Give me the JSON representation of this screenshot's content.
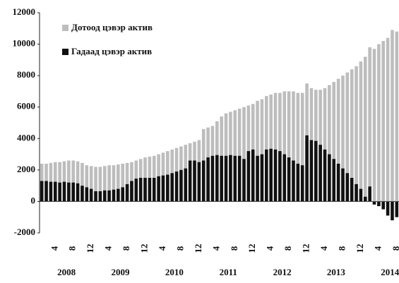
{
  "chart_data": {
    "type": "bar",
    "series": [
      {
        "name": "Дотоод цэвэр актив",
        "color": "#bdbdbd",
        "values": [
          2400,
          2400,
          2450,
          2500,
          2500,
          2550,
          2600,
          2600,
          2550,
          2450,
          2300,
          2250,
          2200,
          2200,
          2250,
          2300,
          2300,
          2350,
          2400,
          2450,
          2500,
          2600,
          2700,
          2800,
          2850,
          2900,
          3000,
          3100,
          3200,
          3300,
          3400,
          3500,
          3600,
          3700,
          3800,
          3900,
          4600,
          4700,
          4800,
          5100,
          5400,
          5600,
          5700,
          5800,
          5900,
          6000,
          6100,
          6200,
          6400,
          6500,
          6700,
          6800,
          6900,
          6900,
          7000,
          7000,
          7000,
          6900,
          6900,
          7500,
          7200,
          7100,
          7100,
          7200,
          7400,
          7600,
          7800,
          8000,
          8200,
          8400,
          8600,
          8900,
          9200,
          9800,
          9700,
          10000,
          10200,
          10400,
          10900,
          10800
        ]
      },
      {
        "name": "Гадаад цэвэр актив",
        "color": "#111111",
        "values": [
          1300,
          1300,
          1250,
          1250,
          1200,
          1250,
          1200,
          1200,
          1150,
          1000,
          900,
          800,
          650,
          650,
          700,
          700,
          750,
          800,
          900,
          1100,
          1300,
          1450,
          1500,
          1500,
          1500,
          1500,
          1600,
          1650,
          1700,
          1800,
          1900,
          2000,
          2100,
          2600,
          2600,
          2500,
          2600,
          2800,
          2900,
          2950,
          2900,
          2900,
          2950,
          2900,
          2900,
          2700,
          3200,
          3300,
          2900,
          3000,
          3300,
          3350,
          3300,
          3200,
          3000,
          2800,
          2600,
          2400,
          2300,
          4200,
          3900,
          3850,
          3600,
          3300,
          3000,
          2700,
          2400,
          2100,
          1800,
          1500,
          1100,
          800,
          300,
          950,
          -200,
          -300,
          -500,
          -900,
          -1200,
          -1000
        ]
      }
    ],
    "categories": [
      null,
      null,
      null,
      "4",
      null,
      null,
      null,
      "8",
      null,
      null,
      null,
      "12",
      null,
      null,
      null,
      "4",
      null,
      null,
      null,
      "8",
      null,
      null,
      null,
      "12",
      null,
      null,
      null,
      "4",
      null,
      null,
      null,
      "8",
      null,
      null,
      null,
      "12",
      null,
      null,
      null,
      "4",
      null,
      null,
      null,
      "8",
      null,
      null,
      null,
      "12",
      null,
      null,
      null,
      "4",
      null,
      null,
      null,
      "8",
      null,
      null,
      null,
      "12",
      null,
      null,
      null,
      "4",
      null,
      null,
      null,
      "8",
      null,
      null,
      null,
      "12",
      null,
      null,
      null,
      "4",
      null,
      null,
      null,
      "8"
    ],
    "years": [
      "2008",
      "2009",
      "2010",
      "2011",
      "2012",
      "2013",
      "2014"
    ],
    "ylim": [
      -2000,
      12000
    ],
    "yticks": [
      -2000,
      0,
      2000,
      4000,
      6000,
      8000,
      10000,
      12000
    ],
    "legend": "upper left"
  }
}
